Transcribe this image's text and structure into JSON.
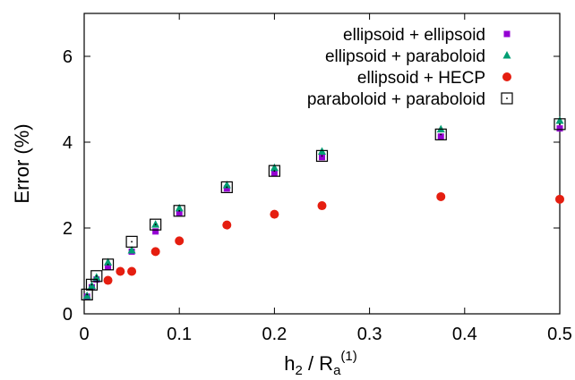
{
  "chart_data": {
    "type": "scatter",
    "title": "",
    "xlabel": {
      "base": "h",
      "sub1": "2",
      "mid": " / R",
      "sub2": "a",
      "sup": "(1)"
    },
    "ylabel": "Error (%)",
    "xlim": [
      0,
      0.5
    ],
    "ylim": [
      0,
      7
    ],
    "xticks": [
      0,
      0.1,
      0.2,
      0.3,
      0.4,
      0.5
    ],
    "xtick_labels": [
      "0",
      "0.1",
      "0.2",
      "0.3",
      "0.4",
      "0.5"
    ],
    "yticks": [
      0,
      2,
      4,
      6
    ],
    "ytick_labels": [
      "0",
      "2",
      "4",
      "6"
    ],
    "grid": false,
    "legend_position": "top-right",
    "series": [
      {
        "name": "ellipsoid + ellipsoid",
        "marker": "square-filled",
        "color": "#9400d3",
        "x": [
          0.003,
          0.008,
          0.013,
          0.025,
          0.05,
          0.075,
          0.1,
          0.15,
          0.2,
          0.25,
          0.375,
          0.5
        ],
        "y": [
          0.4,
          0.62,
          0.8,
          1.1,
          1.45,
          1.92,
          2.35,
          2.92,
          3.28,
          3.65,
          4.13,
          4.32
        ]
      },
      {
        "name": "ellipsoid + paraboloid",
        "marker": "triangle-filled",
        "color": "#009e73",
        "x": [
          0.003,
          0.008,
          0.013,
          0.025,
          0.05,
          0.075,
          0.1,
          0.15,
          0.2,
          0.25,
          0.375,
          0.5
        ],
        "y": [
          0.42,
          0.65,
          0.85,
          1.2,
          1.48,
          2.08,
          2.46,
          3.0,
          3.4,
          3.78,
          4.3,
          4.5
        ]
      },
      {
        "name": "ellipsoid + HECP",
        "marker": "circle-filled",
        "color": "#e51e10",
        "x": [
          0.025,
          0.038,
          0.05,
          0.075,
          0.1,
          0.15,
          0.2,
          0.25,
          0.375,
          0.5
        ],
        "y": [
          0.78,
          0.99,
          0.99,
          1.45,
          1.7,
          2.07,
          2.32,
          2.52,
          2.73,
          2.67
        ]
      },
      {
        "name": "paraboloid + paraboloid",
        "marker": "square-open",
        "color": "#000000",
        "x": [
          0.003,
          0.008,
          0.013,
          0.025,
          0.05,
          0.075,
          0.1,
          0.15,
          0.2,
          0.25,
          0.375,
          0.5
        ],
        "y": [
          0.45,
          0.68,
          0.88,
          1.15,
          1.68,
          2.08,
          2.4,
          2.95,
          3.33,
          3.68,
          4.18,
          4.42
        ]
      }
    ]
  }
}
